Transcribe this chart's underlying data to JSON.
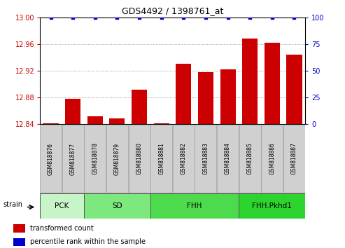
{
  "title": "GDS4492 / 1398761_at",
  "samples": [
    "GSM818876",
    "GSM818877",
    "GSM818878",
    "GSM818879",
    "GSM818880",
    "GSM818881",
    "GSM818882",
    "GSM818883",
    "GSM818884",
    "GSM818885",
    "GSM818886",
    "GSM818887"
  ],
  "red_values": [
    12.841,
    12.878,
    12.852,
    12.848,
    12.892,
    12.841,
    12.93,
    12.918,
    12.922,
    12.968,
    12.962,
    12.944
  ],
  "blue_values": [
    100,
    100,
    100,
    100,
    100,
    100,
    100,
    100,
    100,
    100,
    100,
    100
  ],
  "ylim_left": [
    12.84,
    13.0
  ],
  "ylim_right": [
    0,
    100
  ],
  "yticks_left": [
    12.84,
    12.88,
    12.92,
    12.96,
    13.0
  ],
  "yticks_right": [
    0,
    25,
    50,
    75,
    100
  ],
  "bar_color": "#cc0000",
  "dot_color": "#0000cc",
  "group_boundaries": [
    0,
    2,
    5,
    9,
    12
  ],
  "group_labels": [
    "PCK",
    "SD",
    "FHH",
    "FHH.Pkhd1"
  ],
  "group_colors": [
    "#c8f5c8",
    "#7de87d",
    "#4ddb4d",
    "#2ed42e"
  ],
  "legend_items": [
    {
      "label": "transformed count",
      "color": "#cc0000"
    },
    {
      "label": "percentile rank within the sample",
      "color": "#0000cc"
    }
  ],
  "tick_label_bg": "#d0d0d0",
  "tick_label_color_left": "#cc0000",
  "tick_label_color_right": "#0000cc",
  "strain_label": "strain",
  "bar_width": 0.7
}
